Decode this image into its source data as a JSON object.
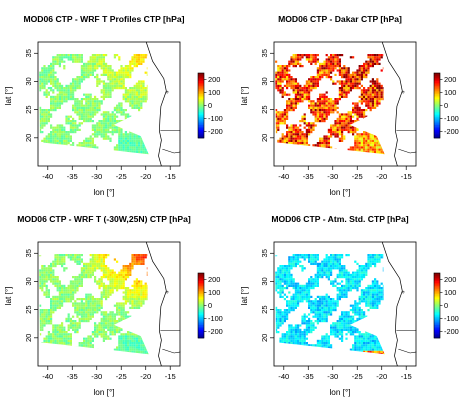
{
  "chart_data": [
    {
      "type": "heatmap",
      "title": "MOD06 CTP - WRF T Profiles CTP [hPa]",
      "xlabel": "lon [°]",
      "ylabel": "lat [°]",
      "xlim": [
        -42,
        -13
      ],
      "ylim": [
        15,
        37
      ],
      "xticks": [
        "-40",
        "-35",
        "-30",
        "-25",
        "-20",
        "-15"
      ],
      "yticks": [
        "20",
        "25",
        "30",
        "35"
      ],
      "colorbar": {
        "ticks": [
          "200",
          "100",
          "0",
          "-100",
          "-200"
        ],
        "range": [
          -250,
          250
        ]
      },
      "field": {
        "mode": "wrf",
        "base": 5,
        "ne_bias": 35,
        "cloud_fraction": 0.62
      }
    },
    {
      "type": "heatmap",
      "title": "MOD06 CTP - Dakar CTP [hPa]",
      "xlabel": "lon [°]",
      "ylabel": "lat [°]",
      "xlim": [
        -42,
        -13
      ],
      "ylim": [
        15,
        37
      ],
      "xticks": [
        "-40",
        "-35",
        "-30",
        "-25",
        "-20",
        "-15"
      ],
      "yticks": [
        "20",
        "25",
        "30",
        "35"
      ],
      "colorbar": {
        "ticks": [
          "200",
          "100",
          "0",
          "-100",
          "-200"
        ],
        "range": [
          -250,
          250
        ]
      },
      "field": {
        "mode": "dakar",
        "base": 200,
        "ne_bias": 30,
        "cloud_fraction": 0.58
      }
    },
    {
      "type": "heatmap",
      "title": "MOD06 CTP - WRF T (-30W,25N) CTP [hPa]",
      "xlabel": "lon [°]",
      "ylabel": "lat [°]",
      "xlim": [
        -42,
        -13
      ],
      "ylim": [
        15,
        37
      ],
      "xticks": [
        "-40",
        "-35",
        "-30",
        "-25",
        "-20",
        "-15"
      ],
      "yticks": [
        "20",
        "25",
        "30",
        "35"
      ],
      "colorbar": {
        "ticks": [
          "200",
          "100",
          "0",
          "-100",
          "-200"
        ],
        "range": [
          -250,
          250
        ]
      },
      "field": {
        "mode": "wrf",
        "base": 5,
        "ne_bias": 75,
        "cloud_fraction": 0.62
      }
    },
    {
      "type": "heatmap",
      "title": "MOD06 CTP - Atm. Std. CTP [hPa]",
      "xlabel": "lon [°]",
      "ylabel": "lat [°]",
      "xlim": [
        -42,
        -13
      ],
      "ylim": [
        15,
        37
      ],
      "xticks": [
        "-40",
        "-35",
        "-30",
        "-25",
        "-20",
        "-15"
      ],
      "yticks": [
        "20",
        "25",
        "30",
        "35"
      ],
      "colorbar": {
        "ticks": [
          "200",
          "100",
          "0",
          "-100",
          "-200"
        ],
        "range": [
          -250,
          250
        ]
      },
      "field": {
        "mode": "std",
        "base": -75,
        "ne_bias": 10,
        "cloud_fraction": 0.6
      }
    }
  ]
}
